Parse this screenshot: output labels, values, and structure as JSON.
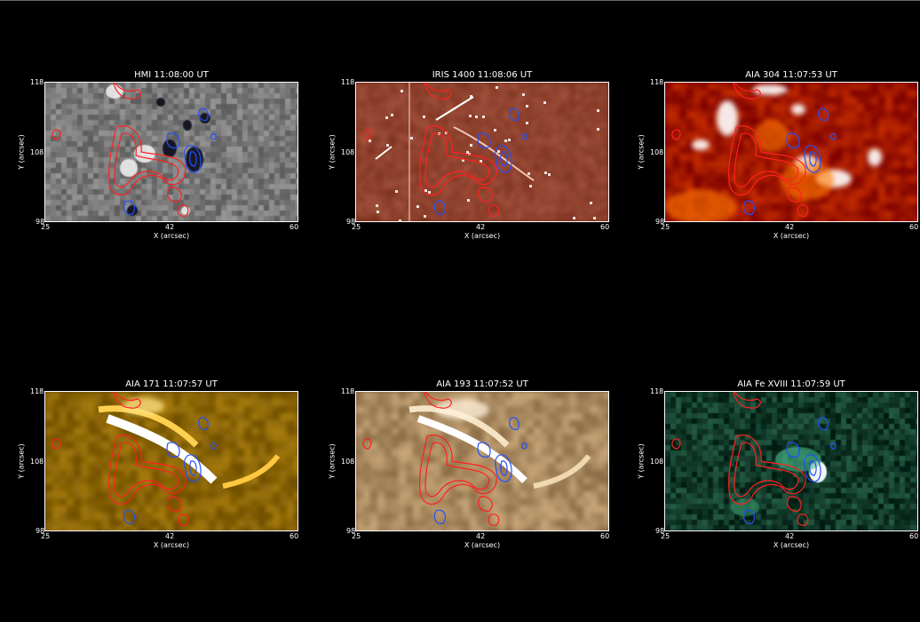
{
  "panels": [
    {
      "title": "HMI 11:08:00 UT",
      "colormap": "gray"
    },
    {
      "title": "IRIS 1400 11:08:06 UT",
      "colormap": "iris-red"
    },
    {
      "title": "AIA 304 11:07:53 UT",
      "colormap": "red-heat"
    },
    {
      "title": "AIA 171 11:07:57 UT",
      "colormap": "gold"
    },
    {
      "title": "AIA 193 11:07:52 UT",
      "colormap": "tan"
    },
    {
      "title": "AIA Fe XVIII 11:07:59 UT",
      "colormap": "green"
    }
  ],
  "axes": {
    "xlabel": "X (arcsec)",
    "ylabel": "Y (arcsec)",
    "xticks": [
      "25",
      "42",
      "60"
    ],
    "yticks": [
      "118",
      "108",
      "98"
    ]
  },
  "contour_colors": {
    "positive": "#ff2020",
    "negative": "#2050ff"
  }
}
